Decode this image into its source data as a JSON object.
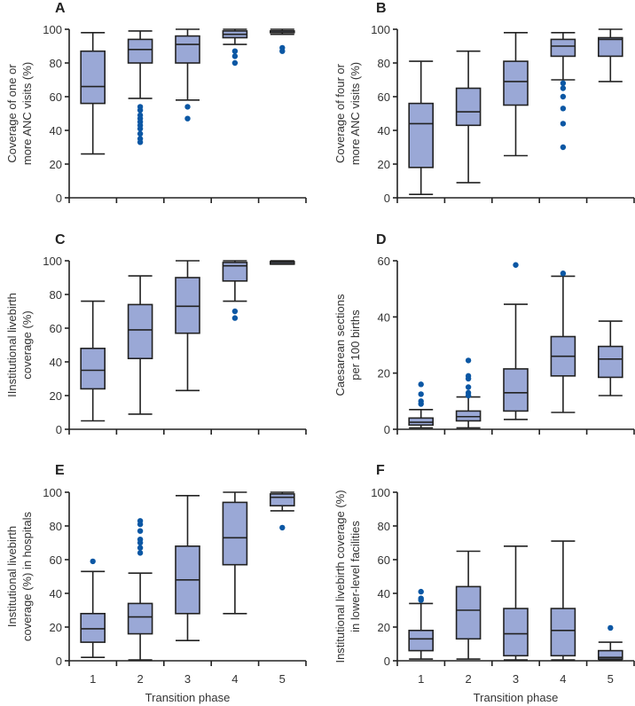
{
  "chart_data": [
    {
      "type": "box",
      "panel": "A",
      "ylabel": [
        "Coverage of one or",
        "more ANC visits (%)"
      ],
      "ylim": [
        0,
        100
      ],
      "yticks": [
        0,
        20,
        40,
        60,
        80,
        100
      ],
      "categories": [
        "1",
        "2",
        "3",
        "4",
        "5"
      ],
      "show_xticks": false,
      "xlabel": "",
      "boxes": [
        {
          "min": 26,
          "q1": 56,
          "median": 66,
          "q3": 87,
          "max": 98,
          "outliers": []
        },
        {
          "min": 59,
          "q1": 80,
          "median": 88,
          "q3": 94,
          "max": 99,
          "outliers": [
            54,
            52,
            49,
            47,
            45,
            43,
            41,
            38,
            35,
            33
          ]
        },
        {
          "min": 58,
          "q1": 80,
          "median": 91,
          "q3": 96,
          "max": 100,
          "outliers": [
            54,
            47
          ]
        },
        {
          "min": 91,
          "q1": 95,
          "median": 97,
          "q3": 99,
          "max": 100,
          "outliers": [
            87,
            84,
            80
          ]
        },
        {
          "min": 97,
          "q1": 98,
          "median": 99,
          "q3": 99,
          "max": 100,
          "outliers": [
            89,
            87
          ]
        }
      ]
    },
    {
      "type": "box",
      "panel": "B",
      "ylabel": [
        "Coverage of four or",
        "more ANC visits (%)"
      ],
      "ylim": [
        0,
        100
      ],
      "yticks": [
        0,
        20,
        40,
        60,
        80,
        100
      ],
      "categories": [
        "1",
        "2",
        "3",
        "4",
        "5"
      ],
      "show_xticks": false,
      "xlabel": "",
      "boxes": [
        {
          "min": 2,
          "q1": 18,
          "median": 44,
          "q3": 56,
          "max": 81,
          "outliers": []
        },
        {
          "min": 9,
          "q1": 43,
          "median": 51,
          "q3": 65,
          "max": 87,
          "outliers": []
        },
        {
          "min": 25,
          "q1": 55,
          "median": 69,
          "q3": 81,
          "max": 98,
          "outliers": []
        },
        {
          "min": 70,
          "q1": 84,
          "median": 90,
          "q3": 94,
          "max": 98,
          "outliers": [
            68,
            65,
            60,
            53,
            44,
            30
          ]
        },
        {
          "min": 69,
          "q1": 84,
          "median": 94,
          "q3": 95,
          "max": 100,
          "outliers": []
        }
      ]
    },
    {
      "type": "box",
      "panel": "C",
      "ylabel": [
        "IInstitutional livebirth",
        "coverage (%)"
      ],
      "ylim": [
        0,
        100
      ],
      "yticks": [
        0,
        20,
        40,
        60,
        80,
        100
      ],
      "categories": [
        "1",
        "2",
        "3",
        "4",
        "5"
      ],
      "show_xticks": false,
      "xlabel": "",
      "boxes": [
        {
          "min": 5,
          "q1": 24,
          "median": 35,
          "q3": 48,
          "max": 76,
          "outliers": []
        },
        {
          "min": 9,
          "q1": 42,
          "median": 59,
          "q3": 74,
          "max": 91,
          "outliers": []
        },
        {
          "min": 23,
          "q1": 57,
          "median": 73,
          "q3": 90,
          "max": 100,
          "outliers": []
        },
        {
          "min": 76,
          "q1": 88,
          "median": 97,
          "q3": 99,
          "max": 100,
          "outliers": [
            70,
            66
          ]
        },
        {
          "min": 98,
          "q1": 98,
          "median": 99,
          "q3": 99.5,
          "max": 100,
          "outliers": []
        }
      ]
    },
    {
      "type": "box",
      "panel": "D",
      "ylabel": [
        "Caesarean sections",
        "per 100 births"
      ],
      "ylim": [
        0,
        60
      ],
      "yticks": [
        0,
        20,
        40,
        60
      ],
      "categories": [
        "1",
        "2",
        "3",
        "4",
        "5"
      ],
      "show_xticks": false,
      "xlabel": "",
      "boxes": [
        {
          "min": 0.5,
          "q1": 1.5,
          "median": 2.5,
          "q3": 4,
          "max": 7,
          "outliers": [
            16,
            12.5,
            10,
            9
          ]
        },
        {
          "min": 0.5,
          "q1": 3,
          "median": 4.5,
          "q3": 6.5,
          "max": 11.5,
          "outliers": [
            24.5,
            19,
            18,
            15,
            13,
            12
          ]
        },
        {
          "min": 3.5,
          "q1": 6.5,
          "median": 13,
          "q3": 21.5,
          "max": 44.5,
          "outliers": [
            58.5
          ]
        },
        {
          "min": 6,
          "q1": 19,
          "median": 26,
          "q3": 33,
          "max": 54.5,
          "outliers": [
            55.5
          ]
        },
        {
          "min": 12,
          "q1": 18.5,
          "median": 25,
          "q3": 29.5,
          "max": 38.5,
          "outliers": []
        }
      ]
    },
    {
      "type": "box",
      "panel": "E",
      "ylabel": [
        "Institutional livebirth",
        "coverage (%) in hospitals"
      ],
      "ylim": [
        0,
        100
      ],
      "yticks": [
        0,
        20,
        40,
        60,
        80,
        100
      ],
      "categories": [
        "1",
        "2",
        "3",
        "4",
        "5"
      ],
      "show_xticks": true,
      "xlabel": "Transition phase",
      "boxes": [
        {
          "min": 2,
          "q1": 11,
          "median": 19,
          "q3": 28,
          "max": 53,
          "outliers": [
            59
          ]
        },
        {
          "min": 0.5,
          "q1": 16,
          "median": 26,
          "q3": 34,
          "max": 52,
          "outliers": [
            83,
            81,
            77,
            72,
            70,
            67,
            64
          ]
        },
        {
          "min": 12,
          "q1": 28,
          "median": 48,
          "q3": 68,
          "max": 98,
          "outliers": []
        },
        {
          "min": 28,
          "q1": 57,
          "median": 73,
          "q3": 94,
          "max": 100,
          "outliers": []
        },
        {
          "min": 89,
          "q1": 92,
          "median": 97,
          "q3": 99,
          "max": 100,
          "outliers": [
            79
          ]
        }
      ]
    },
    {
      "type": "box",
      "panel": "F",
      "ylabel": [
        "Institutional livebirth coverage (%)",
        "in lower-level facilities"
      ],
      "ylim": [
        0,
        100
      ],
      "yticks": [
        0,
        20,
        40,
        60,
        80,
        100
      ],
      "categories": [
        "1",
        "2",
        "3",
        "4",
        "5"
      ],
      "show_xticks": true,
      "xlabel": "Transition phase",
      "boxes": [
        {
          "min": 1,
          "q1": 6,
          "median": 13,
          "q3": 18,
          "max": 34,
          "outliers": [
            41,
            37,
            36
          ]
        },
        {
          "min": 1,
          "q1": 13,
          "median": 30,
          "q3": 44,
          "max": 65,
          "outliers": []
        },
        {
          "min": 0.5,
          "q1": 3,
          "median": 16,
          "q3": 31,
          "max": 68,
          "outliers": []
        },
        {
          "min": 0.5,
          "q1": 3,
          "median": 18,
          "q3": 31,
          "max": 71,
          "outliers": []
        },
        {
          "min": 0.5,
          "q1": 1,
          "median": 2,
          "q3": 6,
          "max": 11,
          "outliers": [
            19.5
          ]
        }
      ]
    }
  ]
}
